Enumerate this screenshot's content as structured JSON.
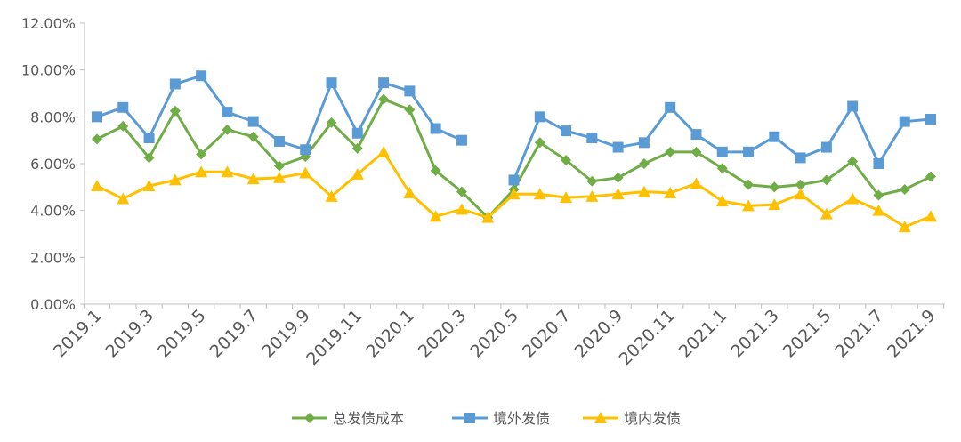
{
  "chart_data": {
    "type": "line",
    "title": "",
    "xlabel": "",
    "ylabel": "",
    "ylim": [
      0,
      12
    ],
    "y_ticks": [
      "0.00%",
      "2.00%",
      "4.00%",
      "6.00%",
      "8.00%",
      "10.00%",
      "12.00%"
    ],
    "grid": false,
    "legend_placement": "bottom",
    "x": [
      "2019.1",
      "2019.2",
      "2019.3",
      "2019.4",
      "2019.5",
      "2019.6",
      "2019.7",
      "2019.8",
      "2019.9",
      "2019.10",
      "2019.11",
      "2019.12",
      "2020.1",
      "2020.2",
      "2020.3",
      "2020.4",
      "2020.5",
      "2020.6",
      "2020.7",
      "2020.8",
      "2020.9",
      "2020.10",
      "2020.11",
      "2020.12",
      "2021.1",
      "2021.2",
      "2021.3",
      "2021.4",
      "2021.5",
      "2021.6",
      "2021.7",
      "2021.8",
      "2021.9"
    ],
    "x_tick_labels": [
      "2019.1",
      "2019.3",
      "2019.5",
      "2019.7",
      "2019.9",
      "2019.11",
      "2020.1",
      "2020.3",
      "2020.5",
      "2020.7",
      "2020.9",
      "2020.11",
      "2021.1",
      "2021.3",
      "2021.5",
      "2021.7",
      "2021.9"
    ],
    "series": [
      {
        "name": "总发债成本",
        "color": "#70ad47",
        "marker": "diamond",
        "values": [
          7.05,
          7.6,
          6.25,
          8.25,
          6.4,
          7.45,
          7.15,
          5.9,
          6.3,
          7.75,
          6.65,
          8.75,
          8.3,
          5.7,
          4.8,
          3.7,
          4.9,
          6.9,
          6.15,
          5.25,
          5.4,
          6.0,
          6.5,
          6.5,
          5.8,
          5.1,
          5.0,
          5.1,
          5.3,
          6.1,
          4.65,
          4.9,
          5.45
        ]
      },
      {
        "name": "境外发债",
        "color": "#5b9bd5",
        "marker": "square",
        "values": [
          8.0,
          8.4,
          7.1,
          9.4,
          9.75,
          8.2,
          7.8,
          6.95,
          6.6,
          9.45,
          7.3,
          9.45,
          9.1,
          7.5,
          7.0,
          null,
          5.3,
          8.0,
          7.4,
          7.1,
          6.7,
          6.9,
          8.4,
          7.25,
          6.5,
          6.5,
          7.15,
          6.25,
          6.7,
          8.45,
          6.0,
          7.8,
          7.9
        ]
      },
      {
        "name": "境内发债",
        "color": "#ffc000",
        "marker": "triangle",
        "values": [
          5.05,
          4.5,
          5.05,
          5.3,
          5.65,
          5.65,
          5.35,
          5.4,
          5.6,
          4.6,
          5.55,
          6.5,
          4.75,
          3.75,
          4.05,
          3.7,
          4.7,
          4.7,
          4.55,
          4.6,
          4.7,
          4.8,
          4.75,
          5.15,
          4.4,
          4.2,
          4.25,
          4.7,
          3.85,
          4.5,
          4.0,
          3.3,
          3.75
        ]
      }
    ]
  }
}
